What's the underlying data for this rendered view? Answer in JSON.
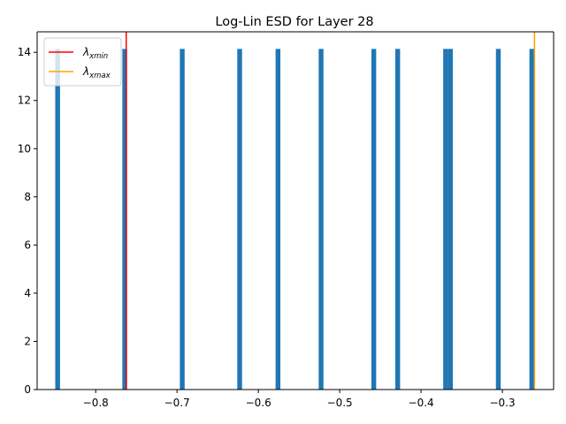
{
  "chart_data": {
    "type": "bar",
    "title": "Log-Lin ESD for Layer 28",
    "xlabel": "",
    "ylabel": "",
    "xlim": [
      -0.872,
      -0.237
    ],
    "ylim": [
      0,
      14.85
    ],
    "x_ticks": [
      -0.8,
      -0.7,
      -0.6,
      -0.5,
      -0.4,
      -0.3
    ],
    "x_tick_labels": [
      "−0.8",
      "−0.7",
      "−0.6",
      "−0.5",
      "−0.4",
      "−0.3"
    ],
    "y_ticks": [
      0,
      2,
      4,
      6,
      8,
      10,
      12,
      14
    ],
    "y_tick_labels": [
      "0",
      "2",
      "4",
      "6",
      "8",
      "10",
      "12",
      "14"
    ],
    "bin_width": 0.00589,
    "bars": [
      {
        "x": -0.8468,
        "height": 14.14
      },
      {
        "x": -0.7643,
        "height": 14.14
      },
      {
        "x": -0.6936,
        "height": 14.14
      },
      {
        "x": -0.623,
        "height": 14.14
      },
      {
        "x": -0.5759,
        "height": 14.14
      },
      {
        "x": -0.5229,
        "height": 14.14
      },
      {
        "x": -0.4581,
        "height": 14.14
      },
      {
        "x": -0.4287,
        "height": 14.14
      },
      {
        "x": -0.3698,
        "height": 14.14
      },
      {
        "x": -0.3639,
        "height": 14.14
      },
      {
        "x": -0.305,
        "height": 14.14
      },
      {
        "x": -0.2638,
        "height": 14.14
      }
    ],
    "bar_color": "#1f77b4",
    "vlines": [
      {
        "name": "xmin-line",
        "x": -0.7625,
        "color": "#ff0000"
      },
      {
        "name": "xmax-line",
        "x": -0.2605,
        "color": "#ffa500"
      }
    ],
    "legend": {
      "placement": "top-left",
      "entries": [
        {
          "symbol": "λ",
          "subscript": "xmin",
          "color": "#ff0000"
        },
        {
          "symbol": "λ",
          "subscript": "xmax",
          "color": "#ffa500"
        }
      ]
    },
    "grid": false
  }
}
